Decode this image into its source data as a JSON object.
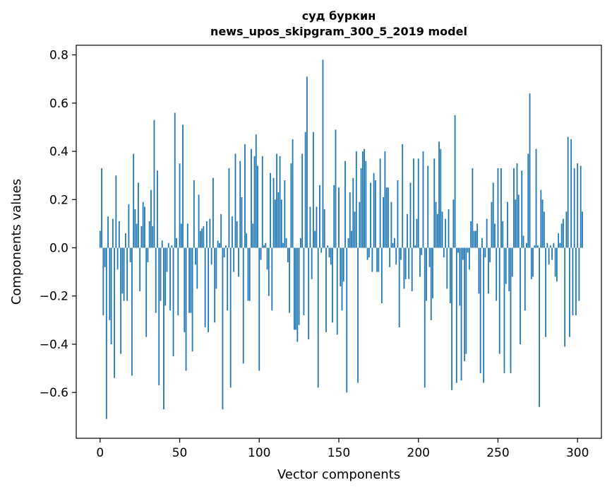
{
  "chart_data": {
    "type": "bar",
    "title": "суд буркин",
    "subtitle": "news_upos_skipgram_300_5_2019 model",
    "xlabel": "Vector components",
    "ylabel": "Components values",
    "xlim": [
      -15,
      315
    ],
    "ylim": [
      -0.79,
      0.84
    ],
    "xticks": [
      0,
      50,
      100,
      150,
      200,
      250,
      300
    ],
    "xtick_labels": [
      "0",
      "50",
      "100",
      "150",
      "200",
      "250",
      "300"
    ],
    "yticks": [
      -0.6,
      -0.4,
      -0.2,
      0.0,
      0.2,
      0.4,
      0.6,
      0.8
    ],
    "ytick_labels": [
      "−0.6",
      "−0.4",
      "−0.2",
      "0.0",
      "0.2",
      "0.4",
      "0.6",
      "0.8"
    ],
    "grid": false,
    "bar_color": "#1f77b4",
    "series": [
      {
        "values": [
          0.07,
          0.33,
          -0.28,
          -0.08,
          -0.71,
          0.13,
          -0.3,
          -0.4,
          0.12,
          -0.54,
          0.3,
          -0.09,
          0.11,
          -0.44,
          -0.19,
          -0.22,
          0.06,
          -0.22,
          0.18,
          -0.06,
          -0.53,
          0.39,
          0.16,
          0.1,
          0.27,
          -0.18,
          0.09,
          0.19,
          0.17,
          -0.37,
          -0.06,
          0.11,
          0.24,
          0.09,
          0.53,
          -0.27,
          0.32,
          -0.57,
          -0.22,
          0.03,
          -0.67,
          -0.24,
          -0.1,
          0.02,
          -0.26,
          0.01,
          -0.45,
          0.56,
          0.04,
          -0.28,
          0.35,
          0.1,
          0.51,
          -0.35,
          -0.51,
          0.1,
          -0.27,
          -0.27,
          -0.43,
          0.28,
          -0.07,
          -0.17,
          0.22,
          0.07,
          0.08,
          0.09,
          -0.33,
          0.11,
          -0.35,
          0.12,
          -0.07,
          0.29,
          -0.31,
          -0.17,
          0.03,
          0.02,
          0.14,
          -0.67,
          -0.04,
          0.01,
          -0.26,
          0.33,
          -0.58,
          0.13,
          -0.1,
          0.39,
          0.11,
          -0.12,
          0.36,
          0.21,
          -0.48,
          0.43,
          0.06,
          -0.22,
          -0.22,
          0.41,
          0.1,
          0.38,
          0.47,
          0.34,
          -0.51,
          -0.05,
          0.38,
          0.01,
          0.02,
          -0.09,
          -0.2,
          0.31,
          -0.26,
          0.29,
          0.2,
          0.39,
          0.23,
          0.38,
          0.2,
          0.02,
          0.28,
          0.04,
          -0.06,
          -0.27,
          0.35,
          0.45,
          -0.34,
          -0.34,
          -0.39,
          -0.32,
          0.04,
          0.39,
          -0.28,
          0.48,
          0.71,
          -0.38,
          0.17,
          -0.13,
          0.48,
          0.07,
          0.17,
          -0.58,
          0.26,
          -0.02,
          0.78,
          0.16,
          -0.35,
          0.01,
          -0.04,
          -0.07,
          -0.31,
          0.26,
          0.49,
          -0.36,
          0.25,
          -0.16,
          -0.26,
          -0.14,
          0.36,
          -0.6,
          0.04,
          0.23,
          0.07,
          0.29,
          0.15,
          0.4,
          -0.56,
          0.19,
          0.33,
          0.4,
          0.41,
          0.36,
          -0.05,
          -0.04,
          0.27,
          -0.1,
          0.31,
          0.28,
          -0.1,
          -0.1,
          0.37,
          -0.23,
          0.21,
          0.4,
          0.25,
          0.25,
          -0.08,
          0.19,
          0.02,
          0.04,
          -0.07,
          0.28,
          -0.33,
          -0.05,
          0.43,
          -0.17,
          -0.13,
          0.14,
          -0.13,
          0.27,
          -0.18,
          0.37,
          0.01,
          0.12,
          0.37,
          -0.12,
          -0.03,
          0.4,
          -0.58,
          -0.22,
          0.34,
          -0.08,
          -0.3,
          -0.21,
          0.37,
          0.19,
          0.14,
          0.44,
          0.41,
          0.15,
          -0.04,
          0.12,
          -0.17,
          0.16,
          -0.23,
          -0.59,
          0.2,
          0.55,
          -0.56,
          -0.02,
          -0.24,
          -0.55,
          -0.05,
          -0.47,
          -0.44,
          -0.02,
          -0.09,
          0.11,
          0.33,
          0.07,
          0.07,
          0.1,
          -0.19,
          -0.52,
          0.04,
          -0.56,
          -0.04,
          0.12,
          -0.19,
          -0.06,
          0.19,
          0.27,
          0.1,
          -0.22,
          0.33,
          -0.44,
          0.33,
          0.11,
          -0.52,
          -0.15,
          0.19,
          -0.18,
          -0.52,
          -0.12,
          0.33,
          0.2,
          0.35,
          0.22,
          -0.4,
          0.32,
          0.05,
          -0.26,
          0.02,
          0.39,
          0.64,
          -0.13,
          -0.12,
          0.01,
          0.41,
          0.01,
          -0.66,
          0.24,
          0.2,
          0.15,
          -0.37,
          0.02,
          -0.07,
          0.01,
          -0.05,
          0.02,
          -0.12,
          -0.14,
          0.06,
          0.02,
          0.1,
          0.12,
          -0.41,
          0.15,
          0.46,
          -0.37,
          0.45,
          -0.28,
          0.33,
          -0.28,
          0.35,
          -0.22,
          0.34,
          0.15
        ]
      }
    ]
  }
}
